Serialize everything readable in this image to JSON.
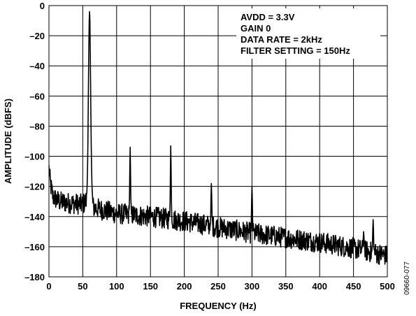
{
  "chart_data": {
    "type": "line",
    "title": "",
    "xlabel": "FREQUENCY (Hz)",
    "ylabel": "AMPLITUDE (dBFS)",
    "xlim": [
      0,
      500
    ],
    "ylim": [
      -180,
      0
    ],
    "x_ticks": [
      0,
      50,
      100,
      150,
      200,
      250,
      300,
      350,
      400,
      450,
      500
    ],
    "y_ticks": [
      0,
      -20,
      -40,
      -60,
      -80,
      -100,
      -120,
      -140,
      -160,
      -180
    ],
    "grid": true,
    "annotations": [
      "AVDD = 3.3V",
      "GAIN 0",
      "DATA RATE = 2kHz",
      "FILTER SETTING = 150Hz"
    ],
    "figure_code": "09660-077",
    "series": [
      {
        "color": "#000000",
        "noise_floor": {
          "x": [
            0,
            2,
            6,
            15,
            30,
            50,
            58,
            66,
            100,
            150,
            200,
            250,
            300,
            350,
            400,
            450,
            500
          ],
          "y": [
            -108,
            -118,
            -127,
            -130,
            -131,
            -132,
            -128,
            -134,
            -138,
            -140,
            -143,
            -147,
            -151,
            -154,
            -157,
            -161,
            -166
          ]
        },
        "spikes": [
          {
            "x": 60,
            "y": -4
          },
          {
            "x": 120,
            "y": -94
          },
          {
            "x": 180,
            "y": -93
          },
          {
            "x": 240,
            "y": -118
          },
          {
            "x": 300,
            "y": -120
          },
          {
            "x": 465,
            "y": -150
          },
          {
            "x": 479,
            "y": -142
          }
        ],
        "noise_amplitude_db": 7
      }
    ]
  }
}
